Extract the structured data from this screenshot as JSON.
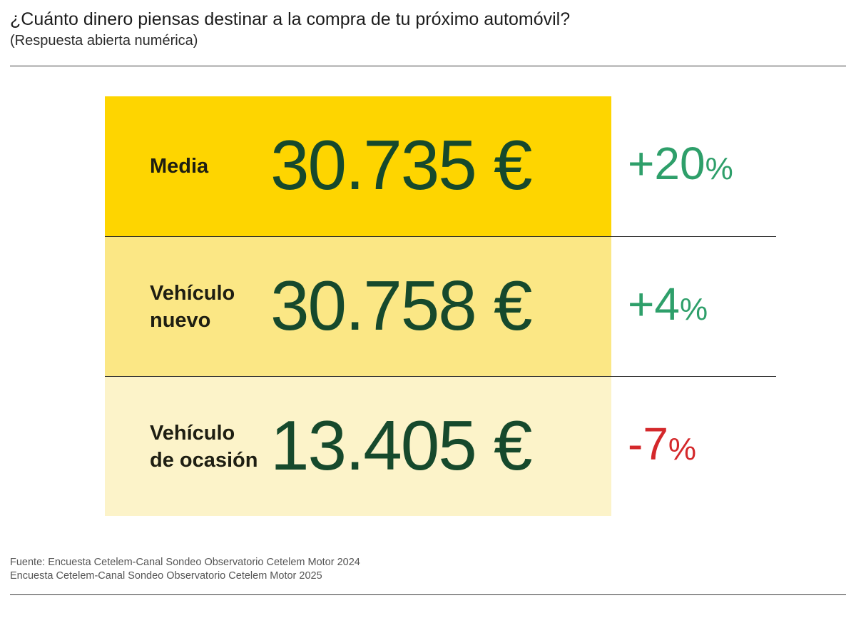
{
  "header": {
    "title": "¿Cuánto dinero piensas destinar a la compra de tu próximo automóvil?",
    "subtitle": "(Respuesta abierta numérica)"
  },
  "chart_data": {
    "type": "table",
    "rows": [
      {
        "label_lines": [
          "Media"
        ],
        "value": "30.735 €",
        "change_number": "+20",
        "change_unit": "%",
        "bg_color": "#FED500",
        "change_color": "#2E9F6A"
      },
      {
        "label_lines": [
          "Vehículo",
          "nuevo"
        ],
        "value": "30.758 €",
        "change_number": "+4",
        "change_unit": "%",
        "bg_color": "#FBE785",
        "change_color": "#2E9F6A"
      },
      {
        "label_lines": [
          "Vehículo",
          "de ocasión"
        ],
        "value": "13.405 €",
        "change_number": "-7",
        "change_unit": "%",
        "bg_color": "#FCF3C9",
        "change_color": "#D4282B"
      }
    ]
  },
  "footer": {
    "line1": "Fuente: Encuesta Cetelem-Canal Sondeo Observatorio Cetelem Motor 2024",
    "line2": "Encuesta Cetelem-Canal Sondeo Observatorio Cetelem Motor 2025"
  }
}
